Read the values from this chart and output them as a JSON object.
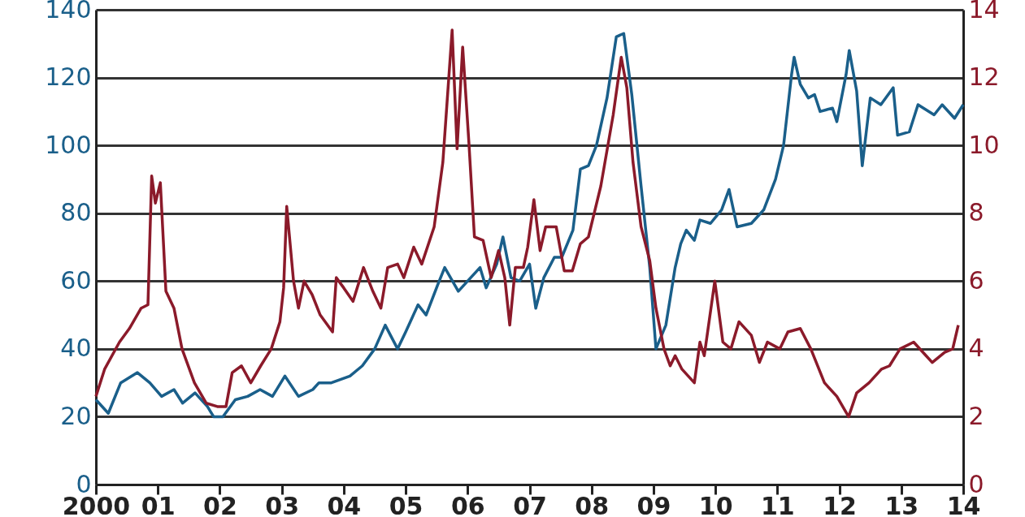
{
  "chart_data": {
    "type": "line",
    "xlim": [
      2000,
      2014
    ],
    "xticks": [
      {
        "value": 2000,
        "label": "2000"
      },
      {
        "value": 2001,
        "label": "01"
      },
      {
        "value": 2002,
        "label": "02"
      },
      {
        "value": 2003,
        "label": "03"
      },
      {
        "value": 2004,
        "label": "04"
      },
      {
        "value": 2005,
        "label": "05"
      },
      {
        "value": 2006,
        "label": "06"
      },
      {
        "value": 2007,
        "label": "07"
      },
      {
        "value": 2008,
        "label": "08"
      },
      {
        "value": 2009,
        "label": "09"
      },
      {
        "value": 2010,
        "label": "10"
      },
      {
        "value": 2011,
        "label": "11"
      },
      {
        "value": 2012,
        "label": "12"
      },
      {
        "value": 2013,
        "label": "13"
      },
      {
        "value": 2014,
        "label": "14"
      }
    ],
    "ylim": [
      0,
      140
    ],
    "yticks": [
      0,
      20,
      40,
      60,
      80,
      100,
      120,
      140
    ],
    "y2lim": [
      0,
      14
    ],
    "y2ticks": [
      0,
      2,
      4,
      6,
      8,
      10,
      12,
      14
    ],
    "grid": "y",
    "marker": "none",
    "line_style": "solid",
    "series": [
      {
        "color": "#1a5f8a",
        "axis": "y",
        "x": [
          2000.0,
          2000.2,
          2000.4,
          2000.67,
          2000.87,
          2001.06,
          2001.26,
          2001.4,
          2001.6,
          2001.8,
          2001.9,
          2002.05,
          2002.25,
          2002.45,
          2002.65,
          2002.85,
          2003.05,
          2003.27,
          2003.5,
          2003.6,
          2003.8,
          2004.1,
          2004.3,
          2004.5,
          2004.67,
          2004.87,
          2005.0,
          2005.2,
          2005.33,
          2005.52,
          2005.63,
          2005.85,
          2006.05,
          2006.2,
          2006.3,
          2006.47,
          2006.57,
          2006.7,
          2006.84,
          2007.0,
          2007.1,
          2007.23,
          2007.4,
          2007.52,
          2007.7,
          2007.82,
          2007.95,
          2008.08,
          2008.25,
          2008.4,
          2008.52,
          2008.65,
          2008.8,
          2008.94,
          2009.04,
          2009.2,
          2009.35,
          2009.44,
          2009.53,
          2009.66,
          2009.75,
          2009.92,
          2010.1,
          2010.22,
          2010.35,
          2010.58,
          2010.78,
          2010.97,
          2011.1,
          2011.23,
          2011.27,
          2011.37,
          2011.5,
          2011.6,
          2011.69,
          2011.89,
          2011.96,
          2012.11,
          2012.16,
          2012.28,
          2012.37,
          2012.5,
          2012.67,
          2012.83,
          2012.87,
          2012.94,
          2013.13,
          2013.27,
          2013.53,
          2013.66,
          2013.86,
          2014.0
        ],
        "values": [
          25,
          21,
          30,
          33,
          30,
          26,
          28,
          24,
          27,
          23,
          20,
          20,
          25,
          26,
          28,
          26,
          32,
          26,
          28,
          30,
          30,
          32,
          35,
          40,
          47,
          40,
          45,
          53,
          50,
          59,
          64,
          57,
          61,
          64,
          58,
          65,
          73,
          61,
          60,
          65,
          52,
          61,
          67,
          67,
          75,
          93,
          94,
          100,
          114,
          132,
          133,
          115,
          88,
          64,
          40,
          47,
          64,
          71,
          75,
          72,
          78,
          77,
          81,
          87,
          76,
          77,
          81,
          90,
          100,
          121,
          126,
          118,
          114,
          115,
          110,
          111,
          107,
          121,
          128,
          116,
          94,
          114,
          112,
          116,
          117,
          103,
          104,
          112,
          109,
          112,
          108,
          112
        ]
      },
      {
        "color": "#8b1a2a",
        "axis": "y2",
        "x": [
          2000.0,
          2000.14,
          2000.38,
          2000.54,
          2000.73,
          2000.84,
          2000.9,
          2000.96,
          2001.04,
          2001.13,
          2001.26,
          2001.39,
          2001.59,
          2001.78,
          2001.96,
          2002.1,
          2002.2,
          2002.35,
          2002.5,
          2002.66,
          2002.83,
          2002.97,
          2003.03,
          2003.08,
          2003.19,
          2003.27,
          2003.36,
          2003.49,
          2003.62,
          2003.82,
          2003.88,
          2004.0,
          2004.15,
          2004.32,
          2004.47,
          2004.6,
          2004.71,
          2004.87,
          2004.97,
          2005.13,
          2005.26,
          2005.46,
          2005.6,
          2005.75,
          2005.83,
          2005.92,
          2006.02,
          2006.11,
          2006.25,
          2006.38,
          2006.5,
          2006.6,
          2006.68,
          2006.77,
          2006.9,
          2006.97,
          2007.07,
          2007.17,
          2007.26,
          2007.43,
          2007.56,
          2007.69,
          2007.82,
          2007.95,
          2008.15,
          2008.35,
          2008.48,
          2008.57,
          2008.67,
          2008.8,
          2008.94,
          2009.04,
          2009.17,
          2009.27,
          2009.35,
          2009.46,
          2009.66,
          2009.75,
          2009.82,
          2009.99,
          2010.12,
          2010.25,
          2010.38,
          2010.58,
          2010.71,
          2010.84,
          2011.04,
          2011.17,
          2011.37,
          2011.54,
          2011.76,
          2011.96,
          2012.15,
          2012.28,
          2012.48,
          2012.68,
          2012.81,
          2012.98,
          2013.2,
          2013.4,
          2013.5,
          2013.7,
          2013.83,
          2013.92
        ],
        "values": [
          2.6,
          3.4,
          4.2,
          4.6,
          5.2,
          5.3,
          9.1,
          8.3,
          8.9,
          5.7,
          5.2,
          4.0,
          3.0,
          2.4,
          2.3,
          2.3,
          3.3,
          3.5,
          3.0,
          3.5,
          4.0,
          4.8,
          5.8,
          8.2,
          6.0,
          5.2,
          6.0,
          5.6,
          5.0,
          4.5,
          6.1,
          5.8,
          5.4,
          6.4,
          5.7,
          5.2,
          6.4,
          6.5,
          6.1,
          7.0,
          6.5,
          7.6,
          9.5,
          13.4,
          9.9,
          12.9,
          10.1,
          7.3,
          7.2,
          6.1,
          6.9,
          6.1,
          4.7,
          6.4,
          6.4,
          7.0,
          8.4,
          6.9,
          7.6,
          7.6,
          6.3,
          6.3,
          7.1,
          7.3,
          8.8,
          10.9,
          12.6,
          11.7,
          9.5,
          7.6,
          6.6,
          5.2,
          4.0,
          3.5,
          3.8,
          3.4,
          3.0,
          4.2,
          3.8,
          6.0,
          4.2,
          4.0,
          4.8,
          4.4,
          3.6,
          4.2,
          4.0,
          4.5,
          4.6,
          4.0,
          3.0,
          2.6,
          2.0,
          2.7,
          3.0,
          3.4,
          3.5,
          4.0,
          4.2,
          3.8,
          3.6,
          3.9,
          4.0,
          4.7
        ]
      }
    ]
  }
}
